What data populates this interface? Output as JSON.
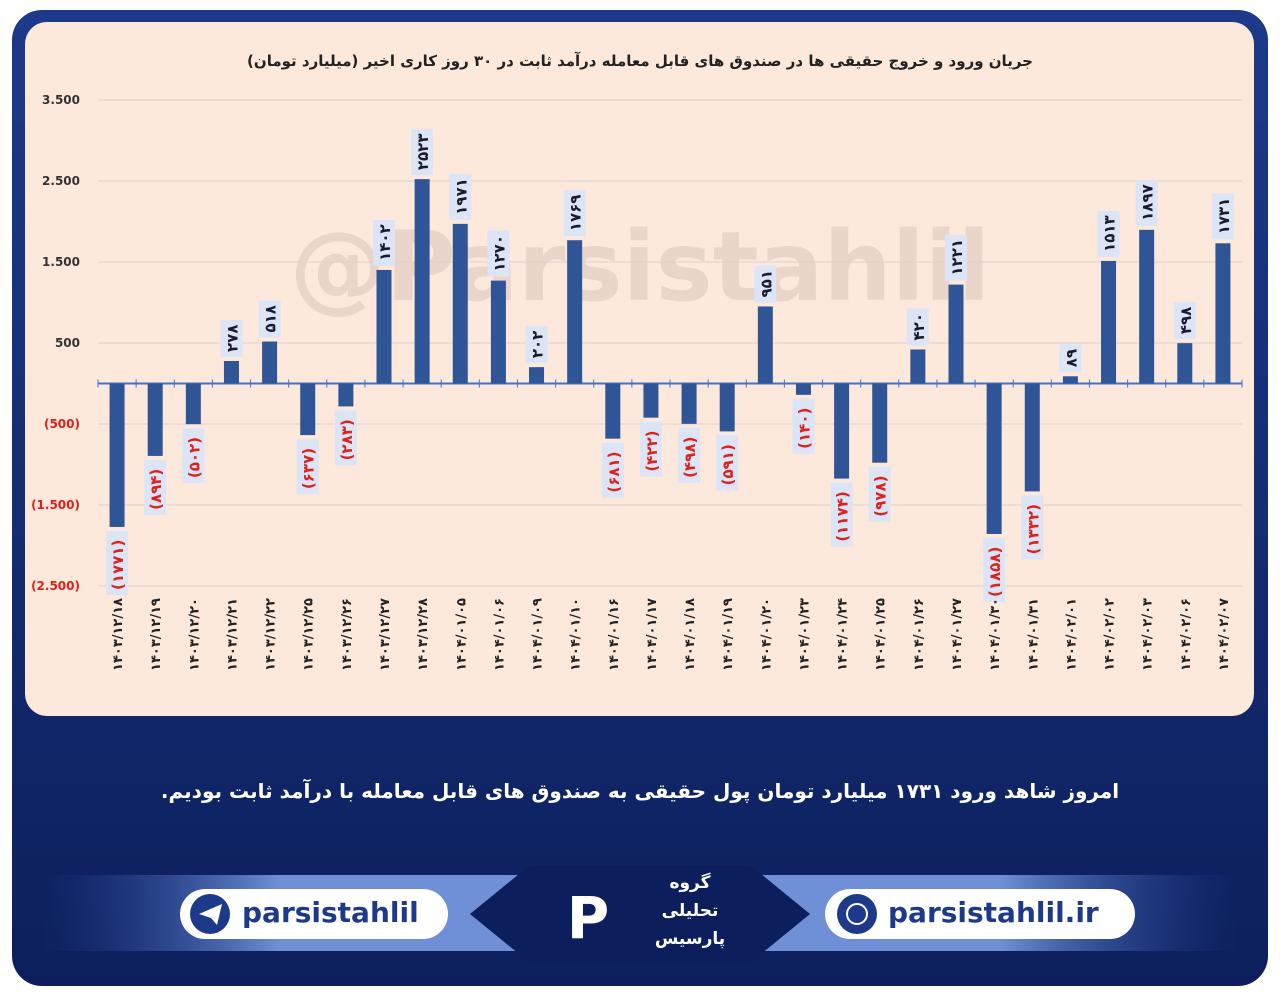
{
  "chart_data": {
    "type": "bar",
    "title": "جریان ورود و خروج حقیقی ها در صندوق های قابل معامله درآمد ثابت در ۳۰ روز کاری اخیر (میلیارد تومان)",
    "watermark": "@Parsistahlil",
    "categories": [
      "۱۴۰۳/۱۲/۱۸",
      "۱۴۰۳/۱۲/۱۹",
      "۱۴۰۳/۱۲/۲۰",
      "۱۴۰۳/۱۲/۲۱",
      "۱۴۰۳/۱۲/۲۲",
      "۱۴۰۳/۱۲/۲۵",
      "۱۴۰۳/۱۲/۲۶",
      "۱۴۰۳/۱۲/۲۷",
      "۱۴۰۳/۱۲/۲۸",
      "۱۴۰۴/۰۱/۰۵",
      "۱۴۰۴/۰۱/۰۶",
      "۱۴۰۴/۰۱/۰۹",
      "۱۴۰۴/۰۱/۱۰",
      "۱۴۰۴/۰۱/۱۶",
      "۱۴۰۴/۰۱/۱۷",
      "۱۴۰۴/۰۱/۱۸",
      "۱۴۰۴/۰۱/۱۹",
      "۱۴۰۴/۰۱/۲۰",
      "۱۴۰۴/۰۱/۲۳",
      "۱۴۰۴/۰۱/۲۴",
      "۱۴۰۴/۰۱/۲۵",
      "۱۴۰۴/۰۱/۲۶",
      "۱۴۰۴/۰۱/۲۷",
      "۱۴۰۴/۰۱/۳۰",
      "۱۴۰۴/۰۱/۳۱",
      "۱۴۰۴/۰۲/۰۱",
      "۱۴۰۴/۰۲/۰۲",
      "۱۴۰۴/۰۲/۰۳",
      "۱۴۰۴/۰۲/۰۶",
      "۱۴۰۴/۰۲/۰۷"
    ],
    "values": [
      -1771,
      -894,
      -502,
      278,
      518,
      -637,
      -283,
      1402,
      2523,
      1971,
      1270,
      202,
      1769,
      -681,
      -422,
      -498,
      -591,
      951,
      -140,
      -1174,
      -978,
      420,
      1221,
      -1858,
      -1332,
      89,
      1513,
      1897,
      498,
      1731
    ],
    "value_labels": [
      "(۱۷۷۱)",
      "(۸۹۴)",
      "(۵۰۲)",
      "۲۷۸",
      "۵۱۸",
      "(۶۳۷)",
      "(۲۸۳)",
      "۱۴۰۲",
      "۲۵۲۳",
      "۱۹۷۱",
      "۱۲۷۰",
      "۲۰۲",
      "۱۷۶۹",
      "(۶۸۱)",
      "(۴۲۲)",
      "(۴۹۸)",
      "(۵۹۱)",
      "۹۵۱",
      "(۱۴۰)",
      "(۱۱۷۴)",
      "(۹۷۸)",
      "۴۲۰",
      "۱۲۲۱",
      "(۱۸۵۸)",
      "(۱۳۳۲)",
      "۸۹",
      "۱۵۱۳",
      "۱۸۹۷",
      "۴۹۸",
      "۱۷۳۱"
    ],
    "color": "#2f5597",
    "negative_label_color": "#e0201b",
    "ylim": [
      -2500,
      3500
    ],
    "yticks": [
      {
        "value": -2500,
        "label": "(2.500)"
      },
      {
        "value": -1500,
        "label": "(1.500)"
      },
      {
        "value": -500,
        "label": "(500)"
      },
      500,
      {
        "value": 1500,
        "label": "1.500"
      },
      {
        "value": 2500,
        "label": "2.500"
      },
      {
        "value": 3500,
        "label": "3.500"
      }
    ],
    "grid": true
  },
  "caption": "امروز شاهد ورود ۱۷۳۱ میلیارد تومان پول حقیقی به صندوق های قابل معامله با درآمد ثابت بودیم.",
  "footer": {
    "telegram": "parsistahlil",
    "website": "parsistahlil.ir",
    "logo_lines": [
      "گروه",
      "تحلیلی",
      "پارسیس"
    ]
  }
}
